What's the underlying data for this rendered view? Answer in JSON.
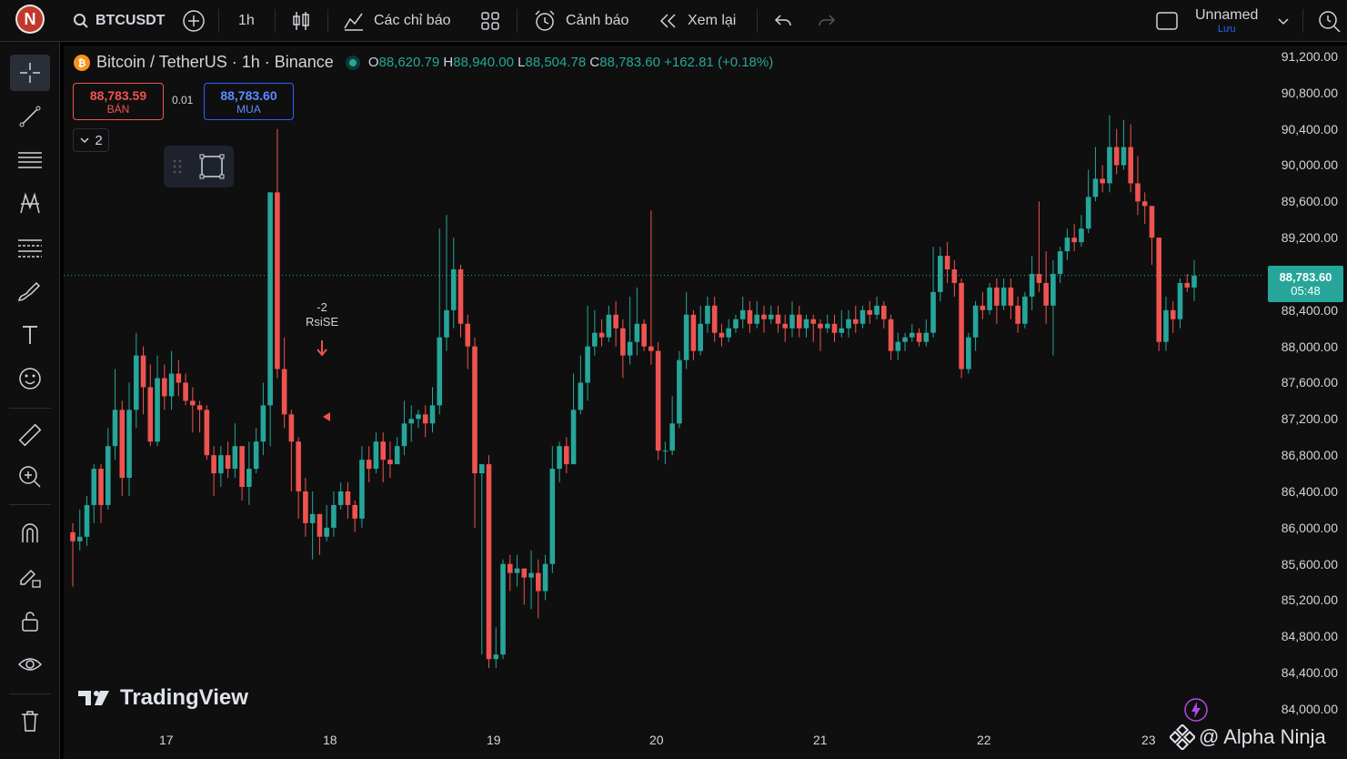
{
  "topbar": {
    "avatar_letter": "N",
    "symbol": "BTCUSDT",
    "interval": "1h",
    "indicators_label": "Các chỉ báo",
    "alert_label": "Cảnh báo",
    "replay_label": "Xem lại",
    "layout_name": "Unnamed",
    "save_label": "Lưu"
  },
  "legend": {
    "title": "Bitcoin / TetherUS · 1h · Binance",
    "open_label": "O",
    "open": "88,620.79",
    "high_label": "H",
    "high": "88,940.00",
    "low_label": "L",
    "low": "88,504.78",
    "close_label": "C",
    "close": "88,783.60",
    "change": "+162.81 (+0.18%)"
  },
  "trade": {
    "sell_price": "88,783.59",
    "sell_label": "BÁN",
    "spread": "0.01",
    "buy_price": "88,783.60",
    "buy_label": "MUA"
  },
  "collapse_count": "2",
  "signal": {
    "label1": "-2",
    "label2": "RsiSE"
  },
  "price_tag": {
    "price": "88,783.60",
    "countdown": "05:48"
  },
  "yaxis_labels": [
    "91,200.00",
    "90,800.00",
    "90,400.00",
    "90,000.00",
    "89,600.00",
    "89,200.00",
    "88,400.00",
    "88,000.00",
    "87,600.00",
    "87,200.00",
    "86,800.00",
    "86,400.00",
    "86,000.00",
    "85,600.00",
    "85,200.00",
    "84,800.00",
    "84,400.00",
    "84,000.00"
  ],
  "xaxis_labels": [
    "17",
    "18",
    "19",
    "20",
    "21",
    "22",
    "23"
  ],
  "watermark": "TradingView",
  "credit": "@ Alpha Ninja",
  "colors": {
    "up": "#26a69a",
    "down": "#ef5350",
    "background": "#0f0f0f",
    "buy": "#2962ff"
  },
  "chart_data": {
    "type": "candlestick",
    "title": "Bitcoin / TetherUS · 1h · Binance",
    "ylim": [
      84000,
      91200
    ],
    "x": [
      "17",
      "18",
      "19",
      "20",
      "21",
      "22",
      "23"
    ],
    "current_price": 88783.6,
    "series": [
      {
        "points": [
          [
            85950,
            85850,
            86050,
            85350
          ],
          [
            85850,
            85900,
            86200,
            85750
          ],
          [
            85900,
            86250,
            86350,
            85800
          ],
          [
            86250,
            86650,
            86700,
            86050
          ],
          [
            86650,
            86250,
            86700,
            86050
          ],
          [
            86250,
            86900,
            87100,
            86200
          ],
          [
            86900,
            87300,
            87750,
            86750
          ],
          [
            87300,
            86550,
            87400,
            86350
          ],
          [
            86550,
            87300,
            87600,
            86350
          ],
          [
            87300,
            87900,
            88150,
            87100
          ],
          [
            87900,
            87550,
            88000,
            87250
          ],
          [
            87550,
            86950,
            87800,
            86900
          ],
          [
            86950,
            87650,
            87900,
            86900
          ],
          [
            87650,
            87450,
            87800,
            87300
          ],
          [
            87450,
            87700,
            87950,
            87300
          ],
          [
            87700,
            87600,
            87850,
            87450
          ],
          [
            87600,
            87400,
            87700,
            87350
          ],
          [
            87400,
            87350,
            87550,
            87050
          ],
          [
            87350,
            87300,
            87400,
            87050
          ],
          [
            87300,
            86800,
            87350,
            86750
          ],
          [
            86800,
            86600,
            86900,
            86350
          ],
          [
            86600,
            86800,
            86900,
            86450
          ],
          [
            86800,
            86650,
            86950,
            86550
          ],
          [
            86650,
            86900,
            87150,
            86550
          ],
          [
            86900,
            86450,
            86900,
            86300
          ],
          [
            86450,
            86650,
            86950,
            86250
          ],
          [
            86650,
            86950,
            87100,
            86600
          ],
          [
            86950,
            87350,
            87600,
            86800
          ],
          [
            87350,
            89700,
            89700,
            86900
          ],
          [
            89700,
            87750,
            90400,
            87650
          ],
          [
            87750,
            87250,
            88100,
            87100
          ],
          [
            87250,
            86950,
            87300,
            86400
          ],
          [
            86950,
            86400,
            87000,
            86100
          ],
          [
            86400,
            86050,
            86550,
            85900
          ],
          [
            86050,
            86150,
            86400,
            85650
          ],
          [
            86150,
            85900,
            86150,
            85700
          ],
          [
            85900,
            86000,
            86250,
            85850
          ],
          [
            86000,
            86250,
            86400,
            85900
          ],
          [
            86250,
            86400,
            86500,
            86200
          ],
          [
            86400,
            86250,
            86500,
            86100
          ],
          [
            86250,
            86100,
            86300,
            85950
          ],
          [
            86100,
            86750,
            86900,
            86000
          ],
          [
            86750,
            86650,
            86900,
            86500
          ],
          [
            86650,
            86950,
            87050,
            86600
          ],
          [
            86950,
            86750,
            87050,
            86500
          ],
          [
            86750,
            86700,
            86950,
            86550
          ],
          [
            86700,
            86900,
            87000,
            86750
          ],
          [
            86900,
            87150,
            87400,
            86800
          ],
          [
            87150,
            87200,
            87350,
            86950
          ],
          [
            87200,
            87250,
            87300,
            87100
          ],
          [
            87250,
            87150,
            87350,
            87000
          ],
          [
            87150,
            87350,
            87550,
            87050
          ],
          [
            87350,
            88100,
            89300,
            87250
          ],
          [
            88100,
            88400,
            89450,
            87950
          ],
          [
            88400,
            88850,
            89200,
            88200
          ],
          [
            88850,
            88250,
            88900,
            88100
          ],
          [
            88250,
            88000,
            88350,
            87750
          ],
          [
            88000,
            86600,
            88100,
            86000
          ],
          [
            86600,
            86700,
            86700,
            84600
          ],
          [
            86700,
            84550,
            86800,
            84450
          ],
          [
            84550,
            84600,
            84900,
            84450
          ],
          [
            84600,
            85600,
            85650,
            84550
          ],
          [
            85600,
            85500,
            85700,
            85300
          ],
          [
            85500,
            85550,
            85700,
            85350
          ],
          [
            85550,
            85450,
            85550,
            85150
          ],
          [
            85450,
            85500,
            85750,
            85100
          ],
          [
            85500,
            85300,
            85650,
            85000
          ],
          [
            85300,
            85600,
            85700,
            85200
          ],
          [
            85600,
            86650,
            86900,
            85500
          ],
          [
            86650,
            86900,
            86950,
            86500
          ],
          [
            86900,
            86700,
            87000,
            86600
          ],
          [
            86700,
            87300,
            87700,
            86900
          ],
          [
            87300,
            87600,
            87900,
            87250
          ],
          [
            87600,
            88000,
            88450,
            87400
          ],
          [
            88000,
            88150,
            88400,
            87900
          ],
          [
            88150,
            88100,
            88300,
            88000
          ],
          [
            88100,
            88350,
            88450,
            88050
          ],
          [
            88350,
            88200,
            88500,
            88000
          ],
          [
            88200,
            87900,
            88300,
            87650
          ],
          [
            87900,
            88050,
            88550,
            87800
          ],
          [
            88050,
            88250,
            88650,
            87900
          ],
          [
            88250,
            88000,
            88300,
            87950
          ],
          [
            88000,
            87950,
            89500,
            87800
          ],
          [
            87950,
            86850,
            88050,
            86750
          ],
          [
            86850,
            86850,
            86950,
            86700
          ],
          [
            86850,
            87150,
            87450,
            86800
          ],
          [
            87150,
            87850,
            87950,
            87100
          ],
          [
            87850,
            88350,
            88600,
            87750
          ],
          [
            88350,
            87950,
            88400,
            87850
          ],
          [
            87950,
            88250,
            88450,
            87900
          ],
          [
            88250,
            88450,
            88550,
            88150
          ],
          [
            88450,
            88150,
            88550,
            88050
          ],
          [
            88150,
            88100,
            88250,
            88000
          ],
          [
            88100,
            88200,
            88300,
            88050
          ],
          [
            88200,
            88300,
            88350,
            88150
          ],
          [
            88300,
            88400,
            88550,
            88200
          ],
          [
            88400,
            88250,
            88500,
            88150
          ],
          [
            88250,
            88350,
            88500,
            88200
          ],
          [
            88350,
            88300,
            88450,
            88150
          ],
          [
            88300,
            88350,
            88450,
            88250
          ],
          [
            88350,
            88250,
            88450,
            88150
          ],
          [
            88250,
            88200,
            88350,
            88050
          ],
          [
            88200,
            88350,
            88500,
            88100
          ],
          [
            88350,
            88200,
            88450,
            88100
          ],
          [
            88200,
            88300,
            88350,
            88100
          ],
          [
            88300,
            88250,
            88350,
            88050
          ],
          [
            88250,
            88200,
            88300,
            87950
          ],
          [
            88200,
            88250,
            88350,
            88150
          ],
          [
            88250,
            88150,
            88350,
            88050
          ],
          [
            88150,
            88200,
            88400,
            88100
          ],
          [
            88200,
            88300,
            88400,
            88100
          ],
          [
            88300,
            88250,
            88450,
            88150
          ],
          [
            88250,
            88400,
            88450,
            88200
          ],
          [
            88400,
            88350,
            88500,
            88250
          ],
          [
            88350,
            88450,
            88550,
            88300
          ],
          [
            88450,
            88300,
            88500,
            88200
          ],
          [
            88300,
            87950,
            88350,
            87850
          ],
          [
            87950,
            88050,
            88150,
            87850
          ],
          [
            88050,
            88100,
            88150,
            87950
          ],
          [
            88100,
            88150,
            88250,
            88050
          ],
          [
            88150,
            88050,
            88200,
            88000
          ],
          [
            88050,
            88150,
            88300,
            88000
          ],
          [
            88150,
            88600,
            89100,
            88100
          ],
          [
            88600,
            89000,
            89100,
            88500
          ],
          [
            89000,
            88850,
            89150,
            88700
          ],
          [
            88850,
            88700,
            88950,
            88550
          ],
          [
            88700,
            87750,
            88750,
            87650
          ],
          [
            87750,
            88100,
            88150,
            87700
          ],
          [
            88100,
            88450,
            88500,
            87950
          ],
          [
            88450,
            88400,
            88600,
            88300
          ],
          [
            88400,
            88650,
            88700,
            88350
          ],
          [
            88650,
            88450,
            88750,
            88250
          ],
          [
            88450,
            88650,
            88750,
            88400
          ],
          [
            88650,
            88450,
            88750,
            88300
          ],
          [
            88450,
            88250,
            88550,
            88150
          ],
          [
            88250,
            88550,
            88600,
            88200
          ],
          [
            88550,
            88800,
            89000,
            88400
          ],
          [
            88800,
            88700,
            89600,
            88600
          ],
          [
            88700,
            88450,
            89050,
            88250
          ],
          [
            88450,
            88800,
            88950,
            87900
          ],
          [
            88800,
            89050,
            89100,
            88700
          ],
          [
            89050,
            89200,
            89300,
            88950
          ],
          [
            89200,
            89150,
            89350,
            89050
          ],
          [
            89150,
            89300,
            89450,
            89100
          ],
          [
            89300,
            89650,
            89950,
            89250
          ],
          [
            89650,
            89850,
            90200,
            89600
          ],
          [
            89850,
            89800,
            90000,
            89700
          ],
          [
            89800,
            90200,
            90550,
            89700
          ],
          [
            90200,
            90000,
            90400,
            89900
          ],
          [
            90000,
            90200,
            90500,
            89950
          ],
          [
            90200,
            89800,
            90450,
            89700
          ],
          [
            89800,
            89600,
            90100,
            89450
          ],
          [
            89600,
            89550,
            89700,
            89350
          ],
          [
            89550,
            89200,
            89550,
            88900
          ],
          [
            89200,
            88050,
            89200,
            87950
          ],
          [
            88050,
            88400,
            88550,
            87950
          ],
          [
            88400,
            88300,
            88500,
            88150
          ],
          [
            88300,
            88700,
            88750,
            88200
          ],
          [
            88700,
            88650,
            88800,
            88600
          ],
          [
            88650,
            88780,
            88950,
            88500
          ]
        ]
      }
    ]
  }
}
